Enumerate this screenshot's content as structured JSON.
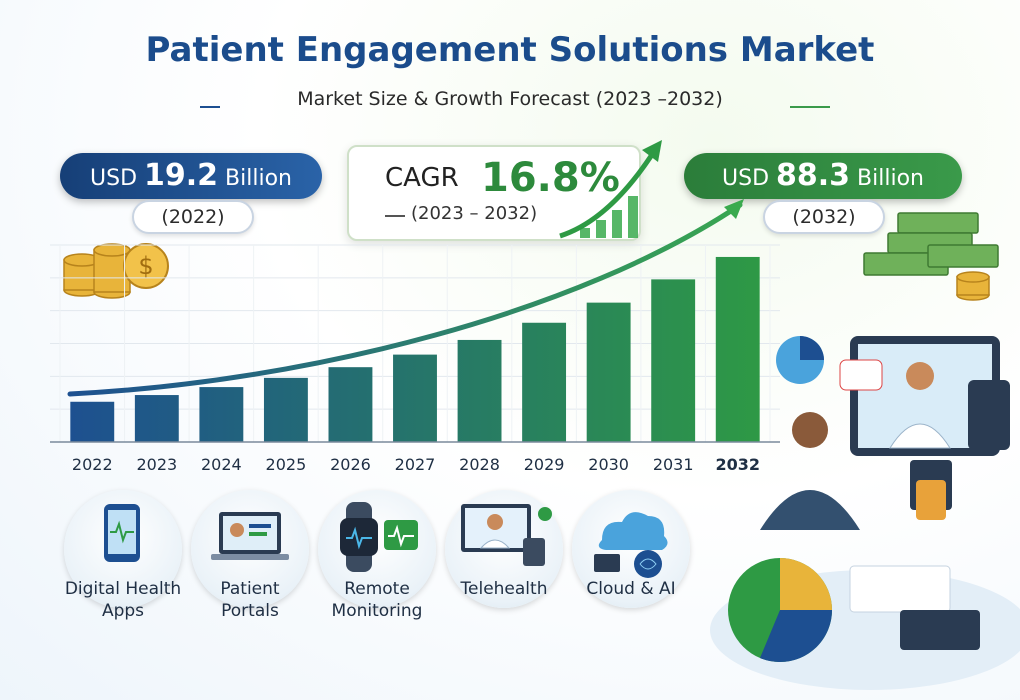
{
  "title": "Patient Engagement Solutions Market",
  "subtitle": "Market Size & Growth Forecast (2023 –2032)",
  "left_stat": {
    "prefix": "USD",
    "value": "19.2",
    "suffix": "Billion",
    "year": "(2022)"
  },
  "right_stat": {
    "prefix": "USD",
    "value": "88.3",
    "suffix": "Billion",
    "year": "(2032)"
  },
  "cagr": {
    "label": "CAGR",
    "value": "16.8%",
    "period": "(2023 – 2032)"
  },
  "categories": [
    {
      "line1": "Digital Health",
      "line2": "Apps"
    },
    {
      "line1": "Patient",
      "line2": "Portals"
    },
    {
      "line1": "Remote",
      "line2": "Monitoring"
    },
    {
      "line1": "Telehealth",
      "line2": ""
    },
    {
      "line1": "Cloud & AI",
      "line2": ""
    }
  ],
  "colors": {
    "title": "#1b4c8c",
    "blue": "#1d4f91",
    "green": "#2e9a44",
    "left_pill": "#1f4f8a",
    "right_pill": "#2f8a3e"
  },
  "chart_data": {
    "type": "bar",
    "categories": [
      "2022",
      "2023",
      "2024",
      "2025",
      "2026",
      "2027",
      "2028",
      "2029",
      "2030",
      "2031",
      "2032"
    ],
    "values": [
      19.2,
      22.4,
      26.2,
      30.6,
      35.7,
      41.7,
      48.7,
      56.9,
      66.5,
      77.6,
      88.3
    ],
    "highlight_category": "2032",
    "trend_line": true,
    "grid": true,
    "ylim": [
      0,
      94
    ],
    "xlabel": "",
    "ylabel": ""
  }
}
